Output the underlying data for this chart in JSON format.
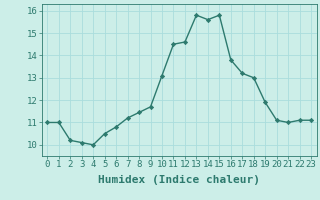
{
  "x": [
    0,
    1,
    2,
    3,
    4,
    5,
    6,
    7,
    8,
    9,
    10,
    11,
    12,
    13,
    14,
    15,
    16,
    17,
    18,
    19,
    20,
    21,
    22,
    23
  ],
  "y": [
    11.0,
    11.0,
    10.2,
    10.1,
    10.0,
    10.5,
    10.8,
    11.2,
    11.45,
    11.7,
    13.1,
    14.5,
    14.6,
    15.8,
    15.6,
    15.8,
    13.8,
    13.2,
    13.0,
    11.9,
    11.1,
    11.0,
    11.1,
    11.1
  ],
  "xlabel": "Humidex (Indice chaleur)",
  "ylim": [
    9.5,
    16.3
  ],
  "xlim": [
    -0.5,
    23.5
  ],
  "bg_color": "#cceee8",
  "line_color": "#2d7a6e",
  "grid_color": "#aadddd",
  "tick_label_fontsize": 6.5,
  "xlabel_fontsize": 8,
  "yticks": [
    10,
    11,
    12,
    13,
    14,
    15,
    16
  ],
  "xticks": [
    0,
    1,
    2,
    3,
    4,
    5,
    6,
    7,
    8,
    9,
    10,
    11,
    12,
    13,
    14,
    15,
    16,
    17,
    18,
    19,
    20,
    21,
    22,
    23
  ]
}
